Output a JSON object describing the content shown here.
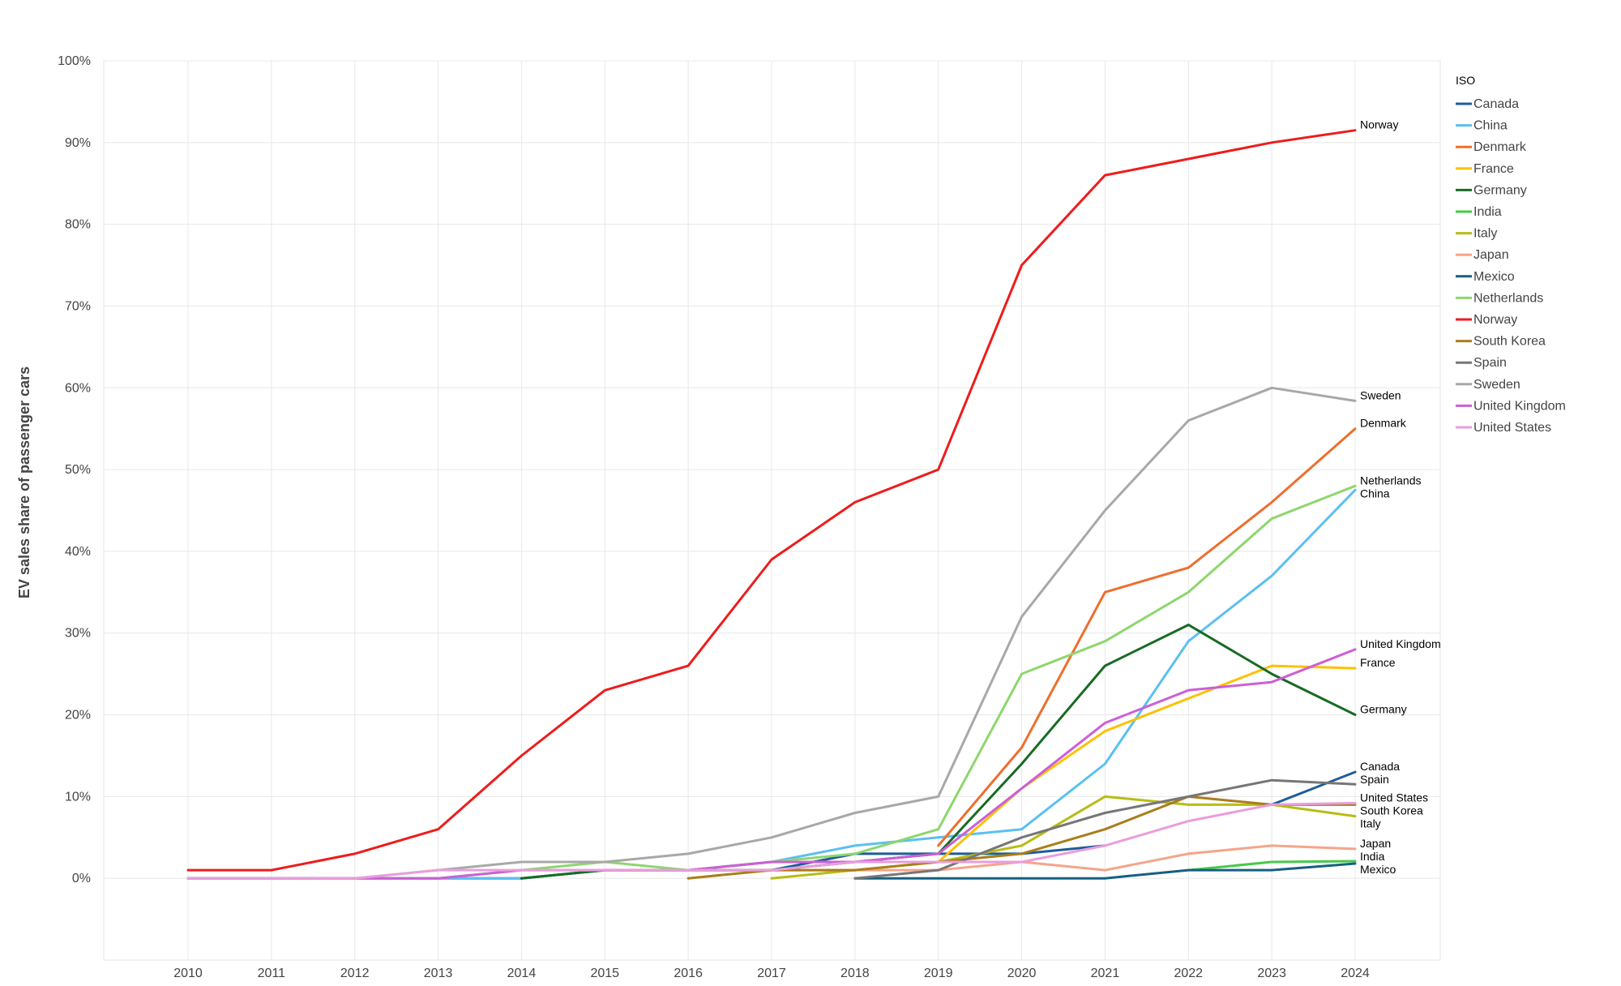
{
  "chart_data": {
    "type": "line",
    "title": "",
    "xlabel": "",
    "ylabel": "EV sales share of passenger cars",
    "ylim": [
      -10,
      100
    ],
    "yticks": [
      0,
      10,
      20,
      30,
      40,
      50,
      60,
      70,
      80,
      90,
      100
    ],
    "ytick_labels": [
      "0%",
      "10%",
      "20%",
      "30%",
      "40%",
      "50%",
      "60%",
      "70%",
      "80%",
      "90%",
      "100%"
    ],
    "x": [
      2010,
      2011,
      2012,
      2013,
      2014,
      2015,
      2016,
      2017,
      2018,
      2019,
      2020,
      2021,
      2022,
      2023,
      2024
    ],
    "xtick_labels": [
      "2010",
      "2011",
      "2012",
      "2013",
      "2014",
      "2015",
      "2016",
      "2017",
      "2018",
      "2019",
      "2020",
      "2021",
      "2022",
      "2023",
      "2024"
    ],
    "grid": true,
    "legend": {
      "title": "ISO",
      "position": "right"
    },
    "series": [
      {
        "name": "Canada",
        "color": "#1f5c99",
        "end_label": "Canada",
        "values": [
          0,
          0,
          0,
          0,
          0,
          1,
          1,
          1,
          3,
          3,
          3,
          4,
          null,
          9,
          13
        ]
      },
      {
        "name": "China",
        "color": "#5bc0f0",
        "end_label": "China",
        "values": [
          0,
          0,
          0,
          0,
          0,
          1,
          1,
          2,
          4,
          5,
          6,
          14,
          29,
          37,
          47.5
        ]
      },
      {
        "name": "Denmark",
        "color": "#ed6f2d",
        "end_label": "Denmark",
        "values": [
          null,
          null,
          null,
          null,
          null,
          null,
          null,
          null,
          null,
          4,
          16,
          35,
          38,
          46,
          55
        ]
      },
      {
        "name": "France",
        "color": "#ffc000",
        "end_label": "France",
        "values": [
          null,
          null,
          null,
          null,
          null,
          null,
          null,
          null,
          null,
          2,
          11,
          18,
          22,
          26,
          25.7
        ]
      },
      {
        "name": "Germany",
        "color": "#186b24",
        "end_label": "Germany",
        "values": [
          null,
          null,
          null,
          null,
          0,
          1,
          1,
          1,
          2,
          3,
          14,
          26,
          31,
          25,
          20
        ]
      },
      {
        "name": "India",
        "color": "#47c94a",
        "end_label": "India",
        "values": [
          null,
          null,
          null,
          null,
          null,
          null,
          null,
          null,
          null,
          null,
          null,
          null,
          1,
          2,
          2.1
        ]
      },
      {
        "name": "Italy",
        "color": "#b8bc14",
        "end_label": "Italy",
        "values": [
          null,
          null,
          null,
          null,
          null,
          null,
          null,
          0,
          1,
          2,
          4,
          10,
          9,
          9,
          7.6
        ]
      },
      {
        "name": "Japan",
        "color": "#f4a58a",
        "end_label": "Japan",
        "values": [
          null,
          null,
          null,
          null,
          null,
          null,
          null,
          1,
          1,
          1,
          2,
          1,
          3,
          4,
          3.6
        ]
      },
      {
        "name": "Mexico",
        "color": "#156082",
        "end_label": "Mexico",
        "values": [
          null,
          null,
          null,
          null,
          null,
          null,
          null,
          null,
          0,
          0,
          0,
          0,
          1,
          1,
          1.8
        ]
      },
      {
        "name": "Netherlands",
        "color": "#8ed66e",
        "end_label": "Netherlands",
        "values": [
          0,
          0,
          0,
          0,
          1,
          2,
          1,
          2,
          3,
          6,
          25,
          29,
          35,
          44,
          48
        ]
      },
      {
        "name": "Norway",
        "color": "#ee1c1c",
        "end_label": "Norway",
        "values": [
          1,
          1,
          3,
          6,
          15,
          23,
          26,
          39,
          46,
          50,
          75,
          86,
          88,
          90,
          91.5
        ]
      },
      {
        "name": "South Korea",
        "color": "#a97e1b",
        "end_label": "South Korea",
        "values": [
          null,
          null,
          null,
          null,
          null,
          null,
          0,
          1,
          1,
          2,
          3,
          6,
          10,
          9,
          9
        ]
      },
      {
        "name": "Spain",
        "color": "#767676",
        "end_label": "Spain",
        "values": [
          null,
          null,
          null,
          null,
          null,
          null,
          null,
          null,
          0,
          1,
          5,
          8,
          10,
          12,
          11.5
        ]
      },
      {
        "name": "Sweden",
        "color": "#a8a8a8",
        "end_label": "Sweden",
        "values": [
          0,
          0,
          0,
          1,
          2,
          2,
          3,
          5,
          8,
          10,
          32,
          45,
          56,
          60,
          58.4
        ]
      },
      {
        "name": "United Kingdom",
        "color": "#cc5fd6",
        "end_label": "United Kingdom",
        "values": [
          0,
          0,
          0,
          0,
          1,
          1,
          1,
          2,
          2,
          3,
          11,
          19,
          23,
          24,
          28
        ]
      },
      {
        "name": "United States",
        "color": "#ea9ddc",
        "end_label": "United States",
        "values": [
          0,
          0,
          0,
          1,
          1,
          1,
          1,
          1,
          2,
          2,
          2,
          4,
          7,
          9,
          9.2
        ]
      }
    ]
  }
}
